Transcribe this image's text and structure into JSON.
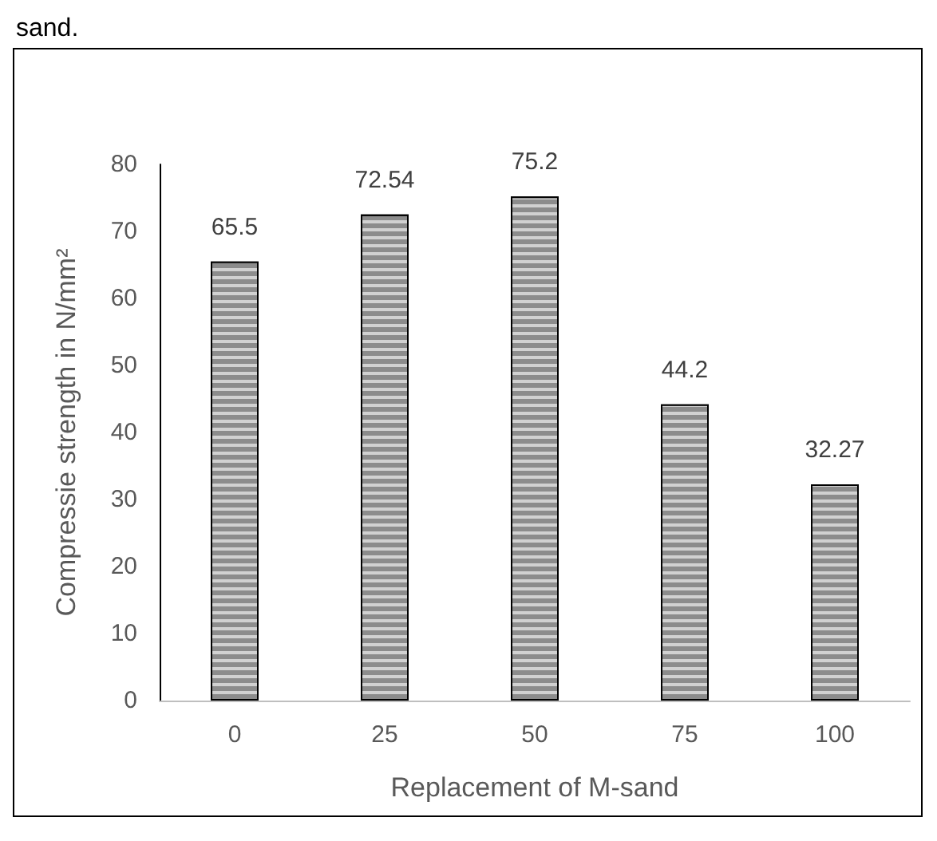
{
  "chart_data": {
    "type": "bar",
    "categories": [
      "0",
      "25",
      "50",
      "75",
      "100"
    ],
    "values": [
      65.5,
      72.54,
      75.2,
      44.2,
      32.27
    ],
    "color": "#8c8c8c",
    "ylim": [
      0,
      80
    ],
    "yticks": [
      0,
      10,
      20,
      30,
      40,
      50,
      60,
      70,
      80
    ],
    "xlabel": "Replacement of M-sand",
    "ylabel": "Compressie strength in N/mm²",
    "data_labels": true,
    "grid": false,
    "annotations": [
      "sand."
    ]
  }
}
